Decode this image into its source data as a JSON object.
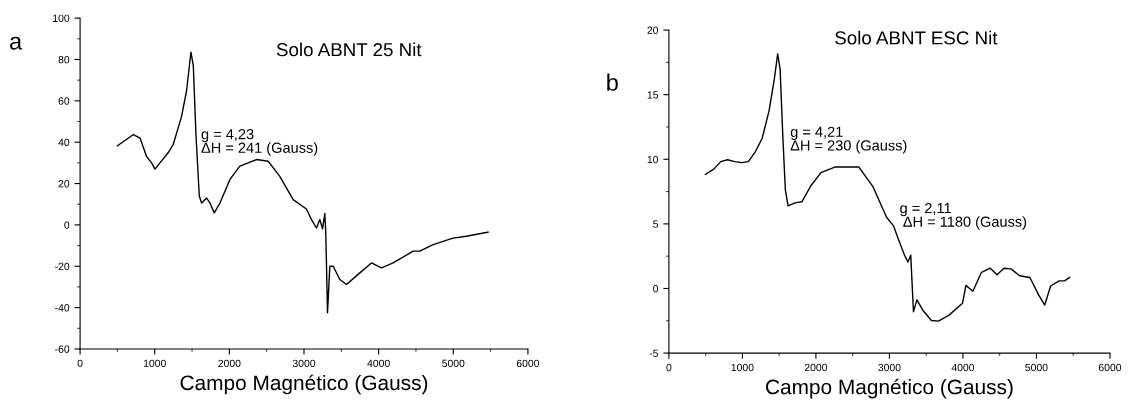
{
  "chart_data": [
    {
      "type": "line",
      "title": "Solo ABNT 25 Nit",
      "xlabel": "Campo Magnético (Gauss)",
      "xlim": [
        0,
        6000
      ],
      "ylim": [
        -60,
        100
      ],
      "xticks": [
        0,
        1000,
        2000,
        3000,
        4000,
        5000,
        6000
      ],
      "yticks": [
        -60,
        -40,
        -20,
        0,
        20,
        40,
        60,
        80,
        100
      ],
      "grid": false,
      "legend": false,
      "annotations": [
        "a",
        "g = 4,23\nΔH = 241 (Gauss)"
      ],
      "series": [
        {
          "color": "#000000",
          "x": [
            500,
            714,
            803,
            892,
            959,
            1004,
            1070,
            1182,
            1249,
            1360,
            1427,
            1485,
            1517,
            1552,
            1597,
            1628,
            1695,
            1740,
            1798,
            1874,
            2008,
            2141,
            2364,
            2520,
            2676,
            2855,
            3033,
            3100,
            3167,
            3212,
            3248,
            3279,
            3292,
            3315,
            3346,
            3391,
            3480,
            3569,
            3748,
            3904,
            4038,
            4194,
            4462,
            4551,
            4730,
            4997,
            5176,
            5466
          ],
          "values": [
            38.3,
            43.7,
            42,
            33,
            30,
            27,
            30,
            35,
            39,
            52.5,
            65,
            83.5,
            77,
            44,
            14,
            10.6,
            13,
            10.6,
            5.8,
            10.6,
            22,
            28.4,
            31.6,
            30.8,
            23.5,
            12.2,
            7.7,
            2.6,
            -1.5,
            2.6,
            -1.9,
            5.5,
            -3.9,
            -42.5,
            -20,
            -20,
            -26.4,
            -28.8,
            -23.2,
            -18.4,
            -20.8,
            -18.4,
            -12.7,
            -12.7,
            -9.5,
            -6.4,
            -5.5,
            -3.5
          ]
        }
      ]
    },
    {
      "type": "line",
      "title": "Solo ABNT ESC Nit",
      "xlabel": "Campo Magnético (Gauss)",
      "xlim": [
        0,
        6000
      ],
      "ylim": [
        -5,
        20
      ],
      "xticks": [
        0,
        1000,
        2000,
        3000,
        4000,
        5000,
        6000
      ],
      "yticks": [
        -5,
        0,
        5,
        10,
        15,
        20
      ],
      "grid": false,
      "legend": false,
      "annotations": [
        "b",
        "g = 4,21\nΔH = 230 (Gauss)",
        "g = 2,11\n ΔH = 1180 (Gauss)"
      ],
      "series": [
        {
          "color": "#000000",
          "x": [
            498,
            611,
            705,
            799,
            893,
            987,
            1081,
            1175,
            1269,
            1363,
            1433,
            1480,
            1513,
            1551,
            1584,
            1621,
            1715,
            1809,
            1927,
            2068,
            2256,
            2585,
            2773,
            2961,
            3055,
            3116,
            3205,
            3252,
            3290,
            3327,
            3374,
            3454,
            3571,
            3666,
            3807,
            3994,
            4041,
            4135,
            4253,
            4371,
            4464,
            4558,
            4652,
            4770,
            4911,
            5028,
            5113,
            5193,
            5310,
            5381,
            5451
          ],
          "values": [
            8.84,
            9.24,
            9.82,
            9.96,
            9.82,
            9.74,
            9.82,
            10.57,
            11.63,
            13.76,
            16.16,
            18.16,
            16.96,
            11.63,
            7.64,
            6.39,
            6.63,
            6.71,
            7.91,
            8.97,
            9.4,
            9.4,
            7.91,
            5.51,
            4.85,
            3.91,
            2.58,
            2.05,
            2.58,
            -1.81,
            -0.88,
            -1.68,
            -2.48,
            -2.53,
            -2.08,
            -1.14,
            0.24,
            -0.21,
            1.25,
            1.57,
            1.06,
            1.57,
            1.52,
            0.99,
            0.85,
            -0.48,
            -1.28,
            0.19,
            0.59,
            0.59,
            0.85
          ]
        }
      ]
    }
  ]
}
